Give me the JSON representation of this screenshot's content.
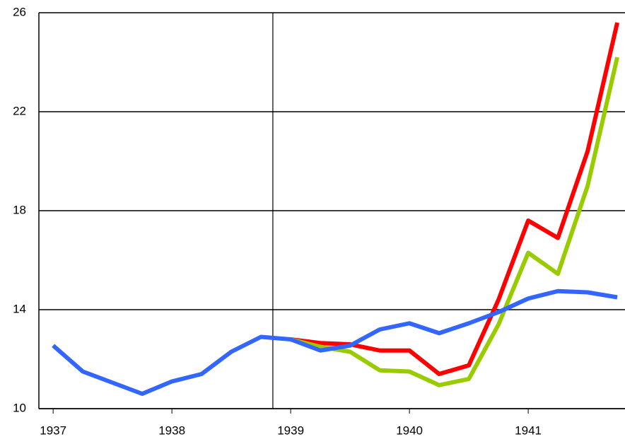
{
  "chart_data": {
    "type": "line",
    "x": [
      1937,
      1937.25,
      1937.5,
      1937.75,
      1938,
      1938.25,
      1938.5,
      1938.75,
      1939,
      1939.25,
      1939.5,
      1939.75,
      1940,
      1940.25,
      1940.5,
      1940.75,
      1941,
      1941.25,
      1941.5,
      1941.75
    ],
    "series": [
      {
        "color": "#ff0000",
        "values": [
          null,
          null,
          null,
          null,
          null,
          null,
          null,
          null,
          12.8,
          12.65,
          12.6,
          12.35,
          12.35,
          11.4,
          11.75,
          14.4,
          17.6,
          16.9,
          20.4,
          25.6
        ]
      },
      {
        "color": "#99cc00",
        "values": [
          null,
          null,
          null,
          null,
          null,
          null,
          null,
          null,
          12.8,
          12.5,
          12.3,
          11.55,
          11.5,
          10.95,
          11.2,
          13.4,
          16.3,
          15.45,
          19.0,
          24.2
        ]
      },
      {
        "color": "#3366ff",
        "values": [
          12.55,
          11.5,
          11.05,
          10.6,
          11.1,
          11.4,
          12.3,
          12.9,
          12.8,
          12.35,
          12.55,
          13.2,
          13.45,
          13.05,
          13.45,
          13.9,
          14.45,
          14.75,
          14.7,
          14.5
        ]
      }
    ],
    "xlim": [
      1936.88,
      1941.815
    ],
    "xticks": [
      1937,
      1938,
      1939,
      1940,
      1941
    ],
    "ylim": [
      10,
      26
    ],
    "yticks": [
      10,
      14,
      18,
      22,
      26
    ],
    "vline": 1938.85,
    "grid": true
  }
}
